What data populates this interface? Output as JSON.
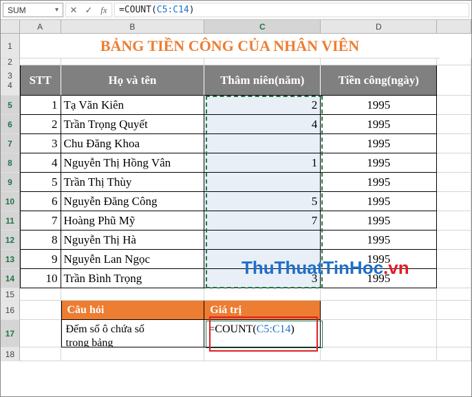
{
  "namebox": {
    "value": "SUM"
  },
  "formula_bar": {
    "prefix": "=COUNT(",
    "ref": "C5:C14",
    "suffix": ")"
  },
  "columns": [
    "A",
    "B",
    "C",
    "D"
  ],
  "col_widths": {
    "A": 60,
    "B": 210,
    "C": 170,
    "D": 170
  },
  "title": "BẢNG TIỀN CÔNG CỦA NHÂN VIÊN",
  "table": {
    "headers": {
      "stt": "STT",
      "name": "Họ và tên",
      "years": "Thâm niên(năm)",
      "wage": "Tiền công(ngày)"
    },
    "header_bg": "#808080",
    "header_color": "#ffffff",
    "selection_bg": "#E8EFF7",
    "rows": [
      {
        "stt": 1,
        "name": "Tạ Văn Kiên",
        "years": "2",
        "wage": "1995"
      },
      {
        "stt": 2,
        "name": "Trần Trọng Quyết",
        "years": "4",
        "wage": "1995"
      },
      {
        "stt": 3,
        "name": "Chu Đăng Khoa",
        "years": "",
        "wage": "1995"
      },
      {
        "stt": 4,
        "name": "Nguyễn Thị Hồng Vân",
        "years": "1",
        "wage": "1995"
      },
      {
        "stt": 5,
        "name": "Trần Thị Thùy",
        "years": "",
        "wage": "1995"
      },
      {
        "stt": 6,
        "name": "Nguyễn Đăng Công",
        "years": "5",
        "wage": "1995"
      },
      {
        "stt": 7,
        "name": "Hoàng Phũ Mỹ",
        "years": "7",
        "wage": "1995"
      },
      {
        "stt": 8,
        "name": "Nguyễn Thị Hà",
        "years": "",
        "wage": "1995"
      },
      {
        "stt": 9,
        "name": "Nguyễn Lan Ngọc",
        "years": "",
        "wage": "1995"
      },
      {
        "stt": 10,
        "name": "Trần Bình Trọng",
        "years": "3",
        "wage": "1995"
      }
    ]
  },
  "question": {
    "header_q": "Câu hỏi",
    "header_v": "Giá trị",
    "header_bg": "#ED7D31",
    "text": "Đếm số ô chứa số\n trong bảng",
    "formula_prefix": "=COUNT(",
    "formula_ref": "C5:C14",
    "formula_suffix": ")"
  },
  "colors": {
    "title": "#ED7D31",
    "grid_line": "#d4d4d4",
    "table_border": "#000000",
    "marquee": "#217346",
    "redbox": "#E31B23",
    "ref_blue": "#1F6FCC"
  },
  "watermark": {
    "part1": "ThuThuatTinHoc",
    "part2": ".vn"
  },
  "row_labels": [
    "1",
    "2",
    "3",
    "4",
    "5",
    "6",
    "7",
    "8",
    "9",
    "10",
    "11",
    "12",
    "13",
    "14",
    "15",
    "16",
    "17",
    "18"
  ]
}
